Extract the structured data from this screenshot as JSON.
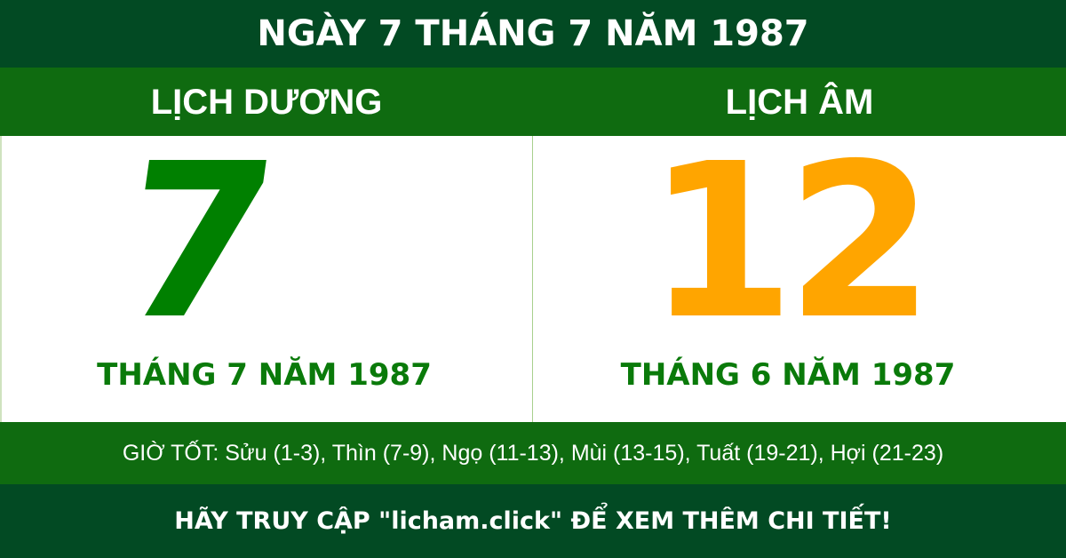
{
  "title": "NGÀY 7 THÁNG 7 NĂM 1987",
  "solar": {
    "header": "LỊCH DƯƠNG",
    "day": "7",
    "month_year": "THÁNG 7 NĂM 1987"
  },
  "lunar": {
    "header": "LỊCH ÂM",
    "day": "12",
    "month_year": "THÁNG 6 NĂM 1987"
  },
  "good_hours": "GIỜ TỐT: Sửu (1-3), Thìn (7-9), Ngọ (11-13), Mùi (13-15), Tuất (19-21), Hợi (21-23)",
  "footer": "HÃY TRUY CẬP \"licham.click\" ĐỂ XEM THÊM CHI TIẾT!",
  "colors": {
    "dark_green": "#024a23",
    "green": "#0f6b10",
    "solar_day": "#008000",
    "lunar_day": "#ffa500"
  }
}
